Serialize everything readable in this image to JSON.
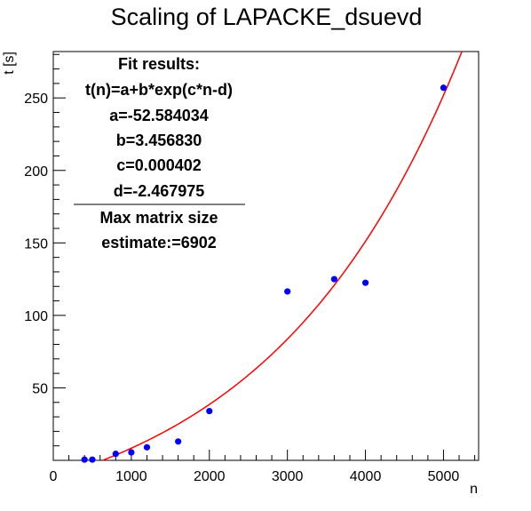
{
  "chart_data": {
    "type": "scatter",
    "title": "Scaling of LAPACKE_dsuevd",
    "xlabel": "n",
    "ylabel": "t [s]",
    "xlim": [
      0,
      5450
    ],
    "ylim": [
      0,
      282
    ],
    "x_ticks": [
      "0",
      "1000",
      "2000",
      "3000",
      "4000",
      "5000"
    ],
    "y_ticks": [
      "50",
      "100",
      "150",
      "200",
      "250"
    ],
    "x_tick_values": [
      0,
      1000,
      2000,
      3000,
      4000,
      5000
    ],
    "y_tick_values": [
      50,
      100,
      150,
      200,
      250
    ],
    "grid": false,
    "series": [
      {
        "kind": "points",
        "color": "#0000ff",
        "x": [
          400,
          500,
          800,
          1000,
          1200,
          1600,
          2000,
          3000,
          3600,
          4000,
          5000
        ],
        "y": [
          0.5,
          0.5,
          4.5,
          5.5,
          9,
          13,
          34,
          116.5,
          125,
          122.5,
          257
        ]
      },
      {
        "kind": "fit",
        "color": "#ff0000",
        "function": "t(n)=a+b*exp(c*n-d)",
        "params": {
          "a": -52.584034,
          "b": 3.45683,
          "c": 0.000402,
          "d": -2.467975
        }
      }
    ],
    "annotation": {
      "lines": [
        "Fit results:",
        "t(n)=a+b*exp(c*n-d)",
        "a=-52.584034",
        "b=3.456830",
        "c=0.000402",
        "d=-2.467975",
        "Max matrix size",
        "estimate:=6902"
      ],
      "placement": "top-left"
    }
  }
}
